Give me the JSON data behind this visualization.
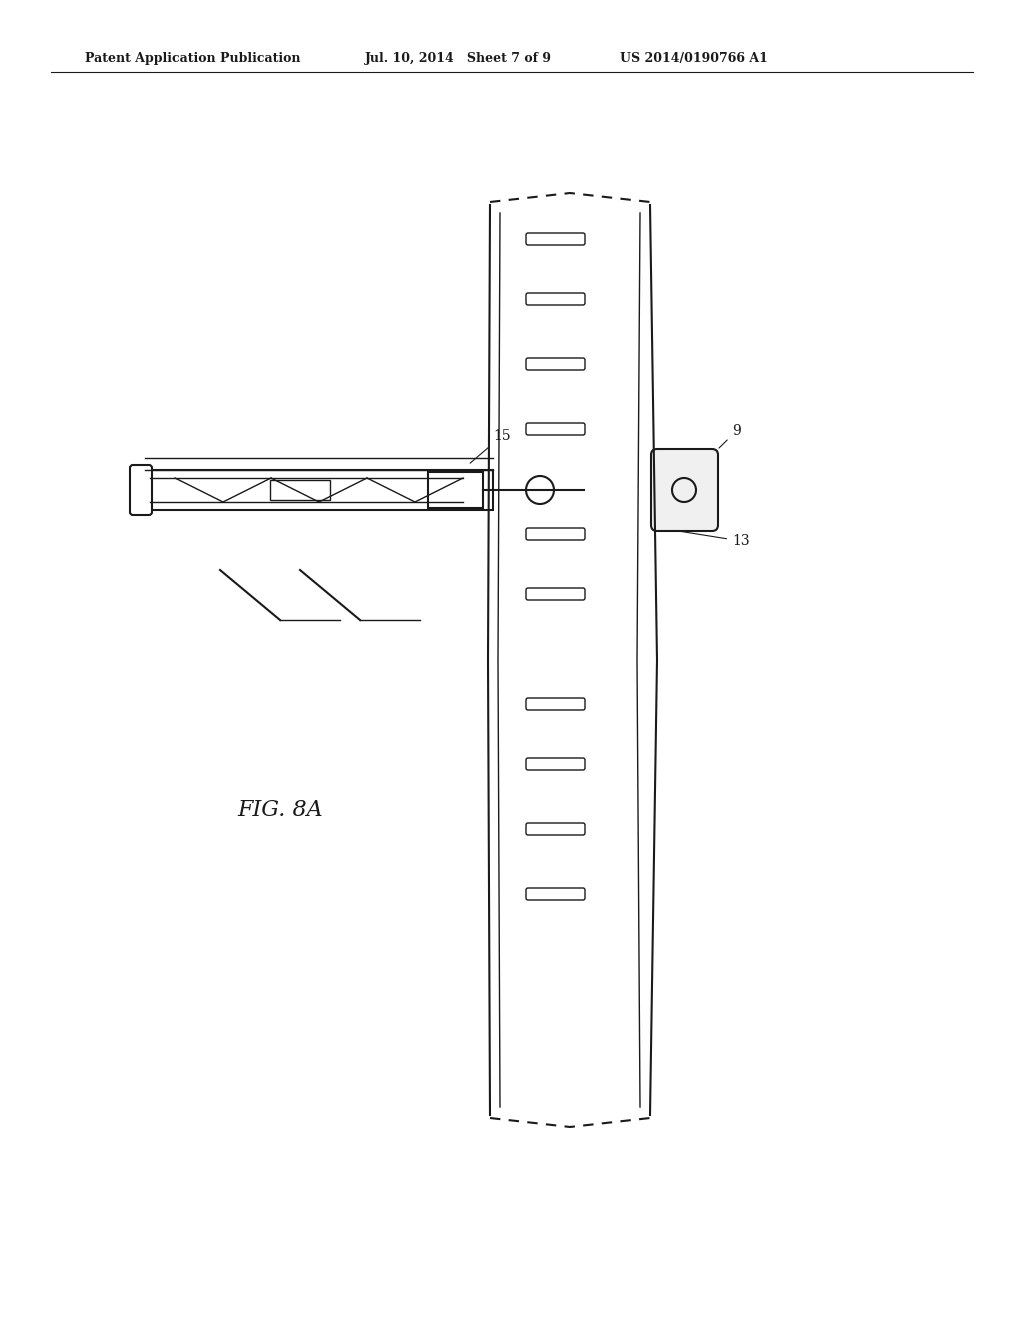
{
  "bg_color": "#ffffff",
  "line_color": "#1a1a1a",
  "header_left": "Patent Application Publication",
  "header_mid": "Jul. 10, 2014   Sheet 7 of 9",
  "header_right": "US 2014/0190766 A1",
  "fig_label": "FIG. 8A",
  "label_15": "15",
  "label_9": "9",
  "label_13": "13"
}
